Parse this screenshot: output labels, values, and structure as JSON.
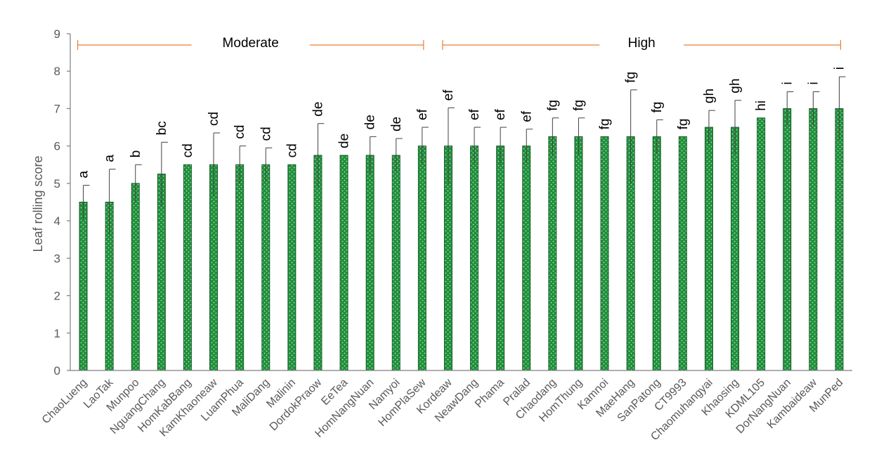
{
  "chart_data": {
    "type": "bar",
    "ylabel": "Leaf rolling score",
    "ylim": [
      0,
      9
    ],
    "yticks": [
      0,
      1,
      2,
      3,
      4,
      5,
      6,
      7,
      8,
      9
    ],
    "grid": false,
    "bar_color": "#1f8f3a",
    "bar_pattern_color": "#a9e3b8",
    "error_bar_color": "#404040",
    "bracket_color": "#ed7d31",
    "categories": [
      "ChaoLueng",
      "LaoTak",
      "Munpoo",
      "NguangChang",
      "HomKabBang",
      "KamKhaoneaw",
      "LuamPhua",
      "MaliDang",
      "Malinin",
      "DordokPraow",
      "EeTea",
      "HomNangNuan",
      "Namyoi",
      "HomPlaSew",
      "Kordeaw",
      "NeawDang",
      "Phama",
      "Pralad",
      "Chaodang",
      "HomThung",
      "Kamnoi",
      "MaeHang",
      "SanPatong",
      "CT9993",
      "Chaomuhangyai",
      "Khaosing",
      "KDML105",
      "DorNangNuan",
      "Kambaideaw",
      "MunPed"
    ],
    "values": [
      4.5,
      4.5,
      5.0,
      5.25,
      5.5,
      5.5,
      5.5,
      5.5,
      5.5,
      5.75,
      5.75,
      5.75,
      5.75,
      6.0,
      6.0,
      6.0,
      6.0,
      6.0,
      6.25,
      6.25,
      6.25,
      6.25,
      6.25,
      6.25,
      6.5,
      6.5,
      6.75,
      7.0,
      7.0,
      7.0
    ],
    "errors": [
      0.45,
      0.88,
      0.5,
      0.85,
      0,
      0.85,
      0.5,
      0.45,
      0,
      0.85,
      0,
      0.5,
      0.45,
      0.5,
      1.02,
      0.5,
      0.5,
      0.45,
      0.5,
      0.5,
      0,
      1.25,
      0.45,
      0,
      0.45,
      0.72,
      0,
      0.45,
      0.45,
      0.85
    ],
    "letters": [
      "a",
      "a",
      "b",
      "bc",
      "cd",
      "cd",
      "cd",
      "cd",
      "cd",
      "de",
      "de",
      "de",
      "de",
      "ef",
      "ef",
      "ef",
      "ef",
      "ef",
      "fg",
      "fg",
      "fg",
      "fg",
      "fg",
      "fg",
      "gh",
      "gh",
      "hi",
      "i",
      "i",
      "i"
    ],
    "groups": [
      {
        "label": "Moderate",
        "from": 0,
        "to": 13
      },
      {
        "label": "High",
        "from": 14,
        "to": 29
      }
    ]
  }
}
